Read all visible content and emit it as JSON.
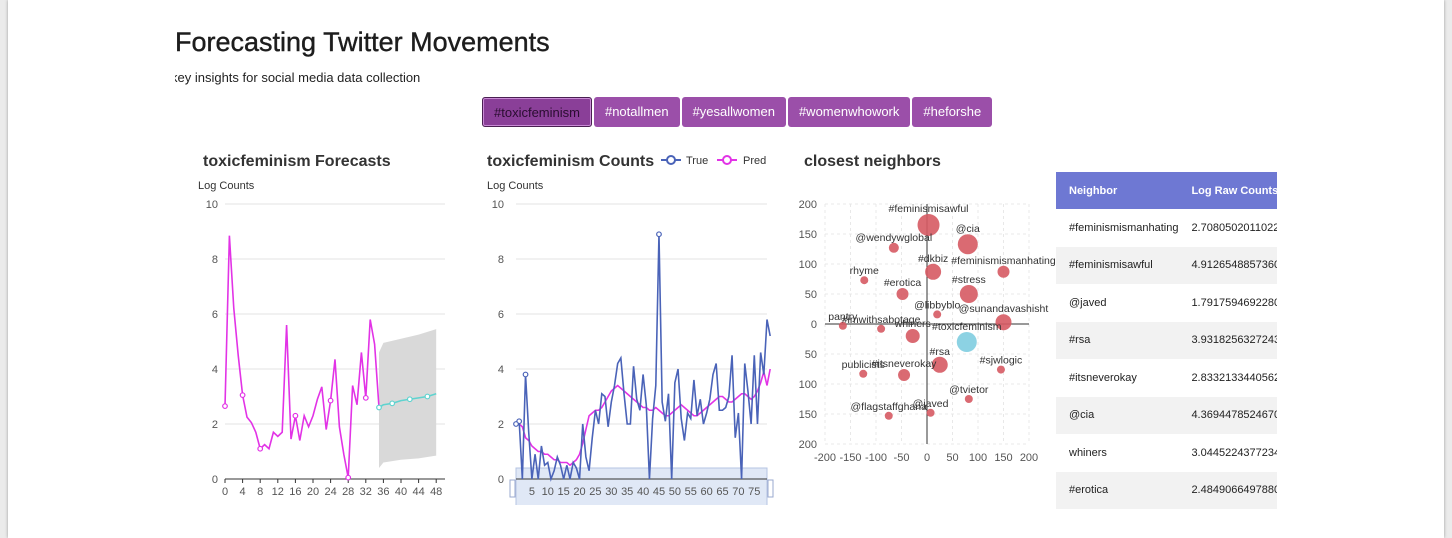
{
  "page": {
    "title": "Forecasting Twitter Movements",
    "subtitle": "key insights for social media data collection"
  },
  "tabs": [
    {
      "label": "#toxicfeminism",
      "active": true
    },
    {
      "label": "#notallmen",
      "active": false
    },
    {
      "label": "#yesallwomen",
      "active": false
    },
    {
      "label": "#womenwhowork",
      "active": false
    },
    {
      "label": "#heforshe",
      "active": false
    }
  ],
  "colors": {
    "accent": "#9b4fa9",
    "pred": "#e233e6",
    "true": "#4a63b8",
    "forecast": "#5fd3cf",
    "band": "#d9d9d9",
    "bubble": "#d65a63",
    "bubble_focus": "#7fcde0",
    "table_header": "#6e78d3"
  },
  "chart_data": [
    {
      "type": "line",
      "title": "toxicfeminism Forecasts",
      "ylabel": "Log Counts",
      "xlim": [
        0,
        50
      ],
      "ylim": [
        0,
        10
      ],
      "xticks": [
        0,
        4,
        8,
        12,
        16,
        20,
        24,
        28,
        32,
        36,
        40,
        44,
        48
      ],
      "yticks": [
        0,
        2,
        4,
        6,
        8,
        10
      ],
      "series": [
        {
          "values": [
            [
              0,
              2.65
            ],
            [
              1,
              8.85
            ],
            [
              2,
              6.2
            ],
            [
              3,
              4.5
            ],
            [
              4,
              3.05
            ],
            [
              5,
              2.25
            ],
            [
              6,
              2.05
            ],
            [
              7,
              1.7
            ],
            [
              8,
              1.1
            ],
            [
              9,
              1.25
            ],
            [
              10,
              1.1
            ],
            [
              11,
              1.7
            ],
            [
              12,
              1.55
            ],
            [
              13,
              1.7
            ],
            [
              14,
              5.6
            ],
            [
              15,
              1.45
            ],
            [
              16,
              2.3
            ],
            [
              17,
              1.4
            ],
            [
              18,
              2.3
            ],
            [
              19,
              1.9
            ],
            [
              20,
              2.3
            ],
            [
              21,
              2.9
            ],
            [
              22,
              3.35
            ],
            [
              23,
              1.8
            ],
            [
              24,
              2.85
            ],
            [
              25,
              4.35
            ],
            [
              26,
              1.9
            ],
            [
              27,
              0.9
            ],
            [
              28,
              0.05
            ],
            [
              29,
              3.4
            ],
            [
              30,
              2.7
            ],
            [
              31,
              4.6
            ],
            [
              32,
              2.95
            ],
            [
              33,
              5.8
            ],
            [
              34,
              4.9
            ],
            [
              35,
              2.6
            ]
          ]
        },
        {
          "values": [
            [
              35,
              2.6
            ],
            [
              36,
              2.7
            ],
            [
              38,
              2.75
            ],
            [
              40,
              2.85
            ],
            [
              42,
              2.9
            ],
            [
              44,
              2.95
            ],
            [
              46,
              3.0
            ],
            [
              48,
              3.1
            ]
          ]
        }
      ],
      "band": [
        [
          35,
          0.4,
          4.6
        ],
        [
          36,
          0.6,
          4.95
        ],
        [
          40,
          0.7,
          5.1
        ],
        [
          44,
          0.75,
          5.25
        ],
        [
          48,
          0.85,
          5.45
        ]
      ]
    },
    {
      "type": "line",
      "title": "toxicfeminism Counts",
      "ylabel": "Log  Counts",
      "legend": [
        "True",
        "Pred"
      ],
      "legend_position": "top-right",
      "xlim": [
        0,
        79
      ],
      "ylim": [
        0,
        10
      ],
      "xticks": [
        5,
        10,
        15,
        20,
        25,
        30,
        35,
        40,
        45,
        50,
        55,
        60,
        65,
        70,
        75
      ],
      "yticks": [
        0,
        2,
        4,
        6,
        8,
        10
      ],
      "series": [
        {
          "name": "True",
          "values": [
            2.0,
            2.1,
            0.0,
            3.8,
            1.7,
            0.0,
            0.9,
            0.0,
            1.2,
            0.5,
            0.6,
            0.0,
            0.3,
            0.8,
            0.5,
            0.0,
            0.5,
            0.0,
            0.6,
            0.4,
            0.0,
            2.0,
            0.8,
            0.3,
            1.5,
            2.5,
            2.0,
            3.1,
            3.0,
            1.9,
            2.8,
            3.4,
            4.2,
            4.4,
            3.1,
            2.0,
            2.0,
            4.1,
            2.9,
            2.5,
            3.8,
            2.7,
            0.0,
            2.2,
            3.4,
            8.9,
            2.8,
            2.1,
            3.1,
            0.0,
            3.5,
            4.0,
            2.2,
            1.4,
            2.4,
            2.2,
            3.6,
            2.3,
            2.9,
            2.0,
            2.4,
            2.9,
            3.8,
            4.2,
            2.5,
            2.5,
            2.6,
            3.0,
            4.5,
            1.5,
            2.4,
            0.0,
            4.2,
            3.2,
            2.0,
            4.5,
            2.0,
            4.6,
            3.8,
            5.8,
            5.2
          ]
        },
        {
          "name": "Pred",
          "values": [
            2.0,
            2.0,
            1.9,
            1.5,
            1.4,
            1.2,
            1.1,
            1.0,
            1.0,
            0.9,
            0.9,
            0.8,
            0.7,
            0.7,
            0.6,
            0.6,
            0.6,
            0.5,
            0.6,
            0.7,
            0.9,
            1.3,
            1.8,
            2.3,
            2.4,
            2.5,
            2.5,
            2.6,
            2.8,
            3.0,
            3.2,
            3.3,
            3.4,
            3.3,
            3.2,
            3.1,
            3.0,
            2.9,
            2.8,
            2.7,
            2.6,
            2.6,
            2.5,
            2.5,
            2.6,
            2.5,
            2.4,
            2.3,
            2.3,
            2.4,
            2.5,
            2.6,
            2.7,
            2.6,
            2.5,
            2.4,
            2.3,
            2.3,
            2.4,
            2.5,
            2.6,
            2.7,
            2.8,
            2.9,
            3.0,
            3.0,
            2.9,
            2.8,
            2.8,
            2.9,
            3.0,
            3.1,
            3.1,
            3.0,
            2.9,
            3.0,
            3.2,
            3.5,
            3.9,
            3.4,
            4.0
          ]
        }
      ],
      "dataZoom": [
        0,
        100
      ]
    },
    {
      "type": "scatter",
      "title": "closest neighbors",
      "xlim": [
        -200,
        200
      ],
      "ylim": [
        -200,
        200
      ],
      "xticks": [
        -200,
        -150,
        -100,
        -50,
        0,
        50,
        100,
        150,
        200
      ],
      "yticks": [
        200,
        150,
        100,
        50,
        0,
        -50,
        -100,
        -150,
        -200
      ],
      "points": [
        {
          "label": "#feminismisawful",
          "x": 3,
          "y": 165,
          "size": 11
        },
        {
          "label": "@cia",
          "x": 80,
          "y": 133,
          "size": 10
        },
        {
          "label": "@wendywglobal",
          "x": -65,
          "y": 127,
          "size": 5
        },
        {
          "label": "#feminismismanhating",
          "x": 150,
          "y": 87,
          "size": 6
        },
        {
          "label": "#dkbiz",
          "x": 12,
          "y": 87,
          "size": 8
        },
        {
          "label": "rhyme",
          "x": -123,
          "y": 73,
          "size": 4
        },
        {
          "label": "#erotica",
          "x": -48,
          "y": 50,
          "size": 6
        },
        {
          "label": "#stress",
          "x": 82,
          "y": 50,
          "size": 9
        },
        {
          "label": "@libbyblo",
          "x": 20,
          "y": 16,
          "size": 4
        },
        {
          "label": "@sunandavashisht",
          "x": 150,
          "y": 3,
          "size": 8
        },
        {
          "label": "pantry",
          "x": -165,
          "y": -3,
          "size": 4
        },
        {
          "label": "#imwithsabotage",
          "x": -90,
          "y": -8,
          "size": 4
        },
        {
          "label": "whiners",
          "x": -28,
          "y": -20,
          "size": 7
        },
        {
          "label": "#toxicfeminism",
          "x": 78,
          "y": -30,
          "size": 10
        },
        {
          "label": "#rsa",
          "x": 25,
          "y": -68,
          "size": 8
        },
        {
          "label": "publicists",
          "x": -125,
          "y": -83,
          "size": 4
        },
        {
          "label": "#itsneverokay",
          "x": -45,
          "y": -85,
          "size": 6
        },
        {
          "label": "#sjwlogic",
          "x": 145,
          "y": -76,
          "size": 4
        },
        {
          "label": "@tvietor",
          "x": 82,
          "y": -125,
          "size": 4
        },
        {
          "label": "@flagstaffghana",
          "x": -75,
          "y": -153,
          "size": 4
        },
        {
          "label": "@javed",
          "x": 7,
          "y": -148,
          "size": 4
        }
      ]
    }
  ],
  "table": {
    "headers": [
      "Neighbor",
      "Log Raw Counts"
    ],
    "rows": [
      [
        "#feminismismanhating",
        "2.70805020110221"
      ],
      [
        "#feminismisawful",
        "4.91265488573605"
      ],
      [
        "@javed",
        "1.79175946922805"
      ],
      [
        "#rsa",
        "3.93182563272433"
      ],
      [
        "#itsneverokay",
        "2.83321334405622"
      ],
      [
        "@cia",
        "4.36944785246702"
      ],
      [
        "whiners",
        "3.04452243772342"
      ],
      [
        "#erotica",
        "2.48490664978800"
      ]
    ]
  }
}
